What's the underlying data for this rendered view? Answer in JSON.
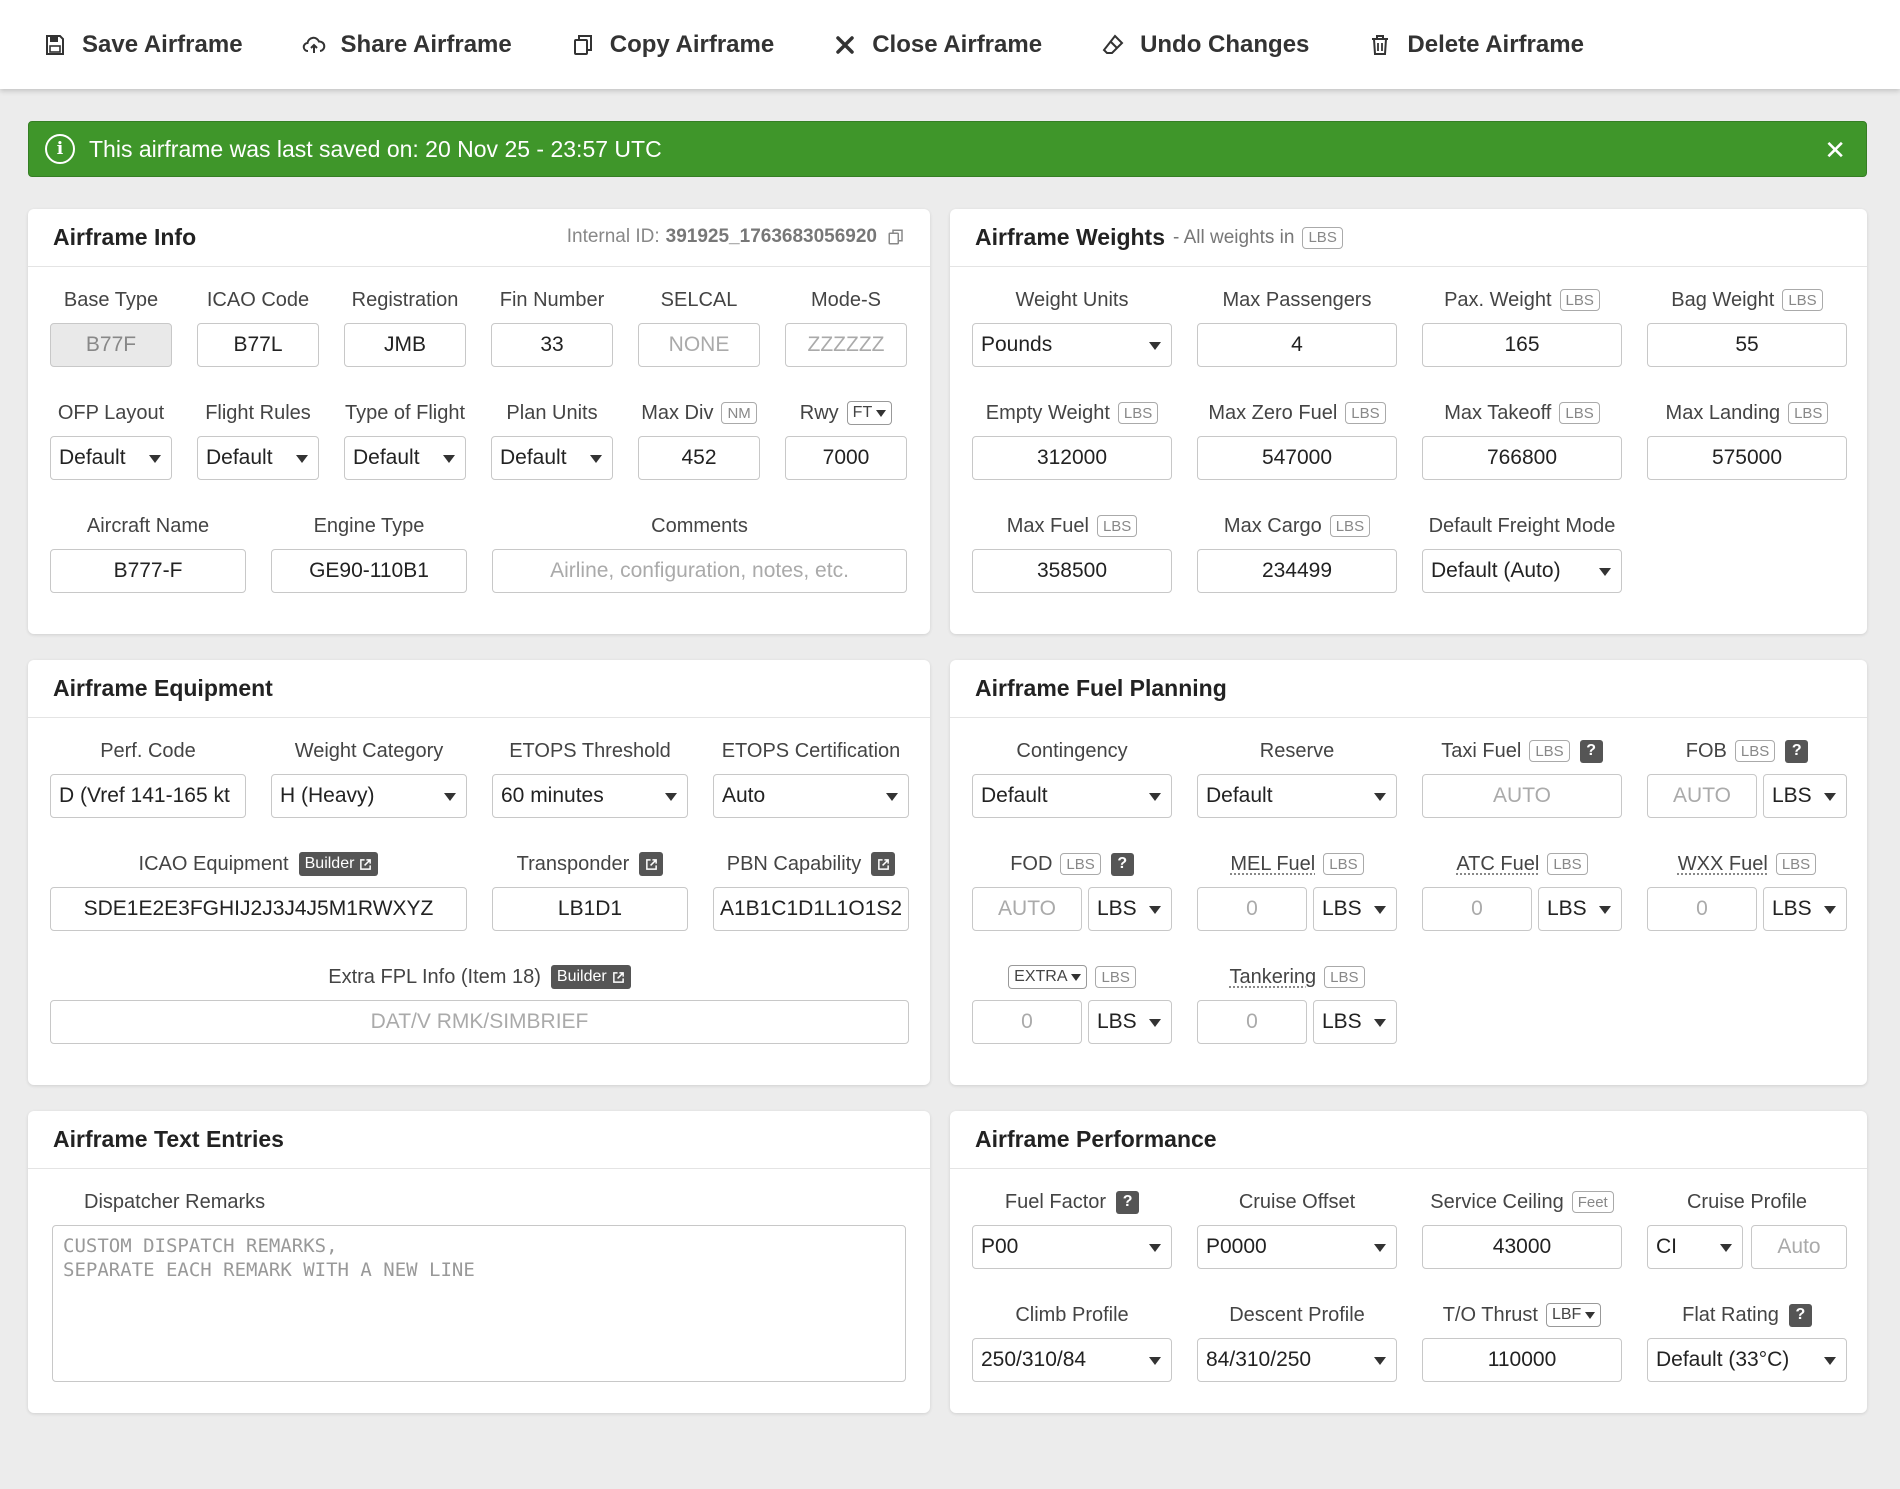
{
  "toolbar": {
    "save": "Save Airframe",
    "share": "Share Airframe",
    "copy": "Copy Airframe",
    "close": "Close Airframe",
    "undo": "Undo Changes",
    "delete": "Delete Airframe"
  },
  "alert": {
    "text": "This airframe was last saved on: 20 Nov 25 - 23:57 UTC",
    "color": "#3f962a"
  },
  "info": {
    "title": "Airframe Info",
    "internal_id_label": "Internal ID:",
    "internal_id": "391925_1763683056920",
    "base_type": {
      "label": "Base Type",
      "value": "B77F"
    },
    "icao_code": {
      "label": "ICAO Code",
      "value": "B77L"
    },
    "registration": {
      "label": "Registration",
      "value": "JMB"
    },
    "fin_number": {
      "label": "Fin Number",
      "value": "33"
    },
    "selcal": {
      "label": "SELCAL",
      "placeholder": "NONE"
    },
    "mode_s": {
      "label": "Mode-S",
      "placeholder": "ZZZZZZ"
    },
    "ofp_layout": {
      "label": "OFP Layout",
      "value": "Default"
    },
    "flight_rules": {
      "label": "Flight Rules",
      "value": "Default"
    },
    "type_of_flight": {
      "label": "Type of Flight",
      "value": "Default"
    },
    "plan_units": {
      "label": "Plan Units",
      "value": "Default"
    },
    "max_div": {
      "label": "Max Div",
      "unit": "NM",
      "value": "452"
    },
    "rwy": {
      "label": "Rwy",
      "unit": "FT",
      "value": "7000"
    },
    "aircraft_name": {
      "label": "Aircraft Name",
      "value": "B777-F"
    },
    "engine_type": {
      "label": "Engine Type",
      "value": "GE90-110B1"
    },
    "comments": {
      "label": "Comments",
      "placeholder": "Airline, configuration, notes, etc."
    }
  },
  "weights": {
    "title": "Airframe Weights",
    "subtitle": "- All weights in",
    "unit": "LBS",
    "weight_units": {
      "label": "Weight Units",
      "value": "Pounds"
    },
    "max_passengers": {
      "label": "Max Passengers",
      "value": "4"
    },
    "pax_weight": {
      "label": "Pax. Weight",
      "unit": "LBS",
      "value": "165"
    },
    "bag_weight": {
      "label": "Bag Weight",
      "unit": "LBS",
      "value": "55"
    },
    "empty_weight": {
      "label": "Empty Weight",
      "unit": "LBS",
      "value": "312000"
    },
    "max_zero_fuel": {
      "label": "Max Zero Fuel",
      "unit": "LBS",
      "value": "547000"
    },
    "max_takeoff": {
      "label": "Max Takeoff",
      "unit": "LBS",
      "value": "766800"
    },
    "max_landing": {
      "label": "Max Landing",
      "unit": "LBS",
      "value": "575000"
    },
    "max_fuel": {
      "label": "Max Fuel",
      "unit": "LBS",
      "value": "358500"
    },
    "max_cargo": {
      "label": "Max Cargo",
      "unit": "LBS",
      "value": "234499"
    },
    "freight_mode": {
      "label": "Default Freight Mode",
      "value": "Default (Auto)"
    }
  },
  "equipment": {
    "title": "Airframe Equipment",
    "perf_code": {
      "label": "Perf. Code",
      "value": "D (Vref 141-165 kt"
    },
    "weight_category": {
      "label": "Weight Category",
      "value": "H (Heavy)"
    },
    "etops_threshold": {
      "label": "ETOPS Threshold",
      "value": "60 minutes"
    },
    "etops_cert": {
      "label": "ETOPS Certification",
      "value": "Auto"
    },
    "icao_equipment": {
      "label": "ICAO Equipment",
      "builder": "Builder",
      "value": "SDE1E2E3FGHIJ2J3J4J5M1RWXYZ"
    },
    "transponder": {
      "label": "Transponder",
      "value": "LB1D1"
    },
    "pbn": {
      "label": "PBN Capability",
      "value": "A1B1C1D1L1O1S2"
    },
    "extra_fpl": {
      "label": "Extra FPL Info (Item 18)",
      "builder": "Builder",
      "placeholder": "DAT/V RMK/SIMBRIEF"
    }
  },
  "fuel": {
    "title": "Airframe Fuel Planning",
    "contingency": {
      "label": "Contingency",
      "value": "Default"
    },
    "reserve": {
      "label": "Reserve",
      "value": "Default"
    },
    "taxi_fuel": {
      "label": "Taxi Fuel",
      "unit": "LBS",
      "placeholder": "AUTO"
    },
    "fob": {
      "label": "FOB",
      "unit": "LBS",
      "placeholder": "AUTO",
      "sel": "LBS"
    },
    "fod": {
      "label": "FOD",
      "unit": "LBS",
      "placeholder": "AUTO",
      "sel": "LBS"
    },
    "mel_fuel": {
      "label": "MEL Fuel",
      "unit": "LBS",
      "placeholder": "0",
      "sel": "LBS"
    },
    "atc_fuel": {
      "label": "ATC Fuel",
      "unit": "LBS",
      "placeholder": "0",
      "sel": "LBS"
    },
    "wxx_fuel": {
      "label": "WXX Fuel",
      "unit": "LBS",
      "placeholder": "0",
      "sel": "LBS"
    },
    "extra": {
      "label": "EXTRA",
      "unit": "LBS",
      "placeholder": "0",
      "sel": "LBS"
    },
    "tankering": {
      "label": "Tankering",
      "unit": "LBS",
      "placeholder": "0",
      "sel": "LBS"
    },
    "help": "?"
  },
  "text_entries": {
    "title": "Airframe Text Entries",
    "dispatcher_remarks": {
      "label": "Dispatcher Remarks",
      "placeholder": "CUSTOM DISPATCH REMARKS,\nSEPARATE EACH REMARK WITH A NEW LINE"
    }
  },
  "performance": {
    "title": "Airframe Performance",
    "fuel_factor": {
      "label": "Fuel Factor",
      "value": "P00"
    },
    "cruise_offset": {
      "label": "Cruise Offset",
      "value": "P0000"
    },
    "service_ceiling": {
      "label": "Service Ceiling",
      "unit": "Feet",
      "value": "43000"
    },
    "cruise_profile": {
      "label": "Cruise Profile",
      "value": "CI",
      "placeholder": "Auto"
    },
    "climb_profile": {
      "label": "Climb Profile",
      "value": "250/310/84"
    },
    "descent_profile": {
      "label": "Descent Profile",
      "value": "84/310/250"
    },
    "to_thrust": {
      "label": "T/O Thrust",
      "unit": "LBF",
      "value": "110000"
    },
    "flat_rating": {
      "label": "Flat Rating",
      "value": "Default (33°C)"
    }
  }
}
